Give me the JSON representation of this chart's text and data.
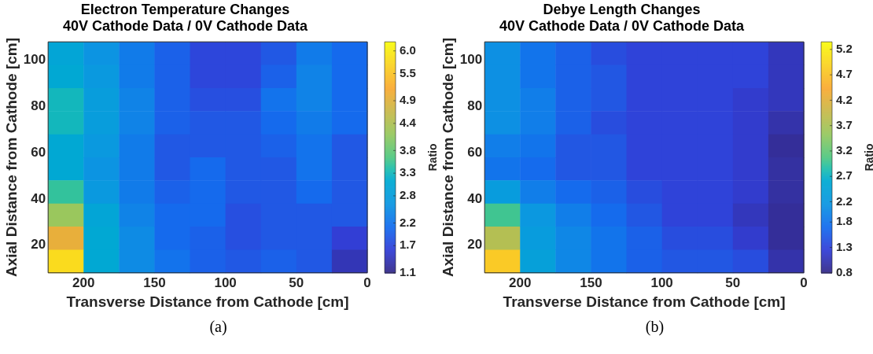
{
  "chart_data": [
    {
      "type": "heatmap",
      "title": "Electron Temperature Changes",
      "subtitle": "40V Cathode Data / 0V Cathode Data",
      "xlabel": "Transverse Distance from Cathode [cm]",
      "ylabel": "Axial Distance from Cathode [cm]",
      "clabel": "Ratio",
      "xlim": [
        225,
        0
      ],
      "xticks": [
        200,
        150,
        100,
        50,
        0
      ],
      "ylim": [
        8,
        108
      ],
      "yticks": [
        20,
        40,
        60,
        80,
        100
      ],
      "clim": [
        1.1,
        6.2
      ],
      "cticks": [
        1.1,
        1.7,
        2.2,
        2.8,
        3.3,
        3.8,
        4.4,
        4.9,
        5.5,
        {
          "value": 6.0,
          "label": "6.0"
        }
      ],
      "cells": [
        [
          3.0,
          2.6,
          2.3,
          2.0,
          1.7,
          1.7,
          1.9,
          2.3,
          2.1
        ],
        [
          3.1,
          2.7,
          2.3,
          2.0,
          1.7,
          1.7,
          2.0,
          2.4,
          2.1
        ],
        [
          3.3,
          2.8,
          2.4,
          2.0,
          1.8,
          1.8,
          2.2,
          2.4,
          2.1
        ],
        [
          3.3,
          2.8,
          2.4,
          2.0,
          1.9,
          1.9,
          2.1,
          2.3,
          2.1
        ],
        [
          3.1,
          2.7,
          2.3,
          1.9,
          1.9,
          1.9,
          2.0,
          2.2,
          1.9
        ],
        [
          3.1,
          2.6,
          2.3,
          1.9,
          2.1,
          1.9,
          1.9,
          2.2,
          1.9
        ],
        [
          3.5,
          2.7,
          2.3,
          2.0,
          2.1,
          1.9,
          1.9,
          2.1,
          1.9
        ],
        [
          4.2,
          3.0,
          2.4,
          2.1,
          2.1,
          1.8,
          1.9,
          1.9,
          1.9
        ],
        [
          5.0,
          3.1,
          2.5,
          2.1,
          2.0,
          1.8,
          1.9,
          1.9,
          1.6
        ],
        [
          5.8,
          3.1,
          2.5,
          2.2,
          2.0,
          1.9,
          2.0,
          1.9,
          1.4
        ]
      ],
      "annotations": [
        "(a)"
      ]
    },
    {
      "type": "heatmap",
      "title": "Debye Length Changes",
      "subtitle": "40V Cathode Data / 0V Cathode Data",
      "xlabel": "Transverse Distance from Cathode [cm]",
      "ylabel": "Axial Distance from Cathode [cm]",
      "clabel": "Ratio",
      "xlim": [
        225,
        0
      ],
      "xticks": [
        200,
        150,
        100,
        50,
        0
      ],
      "ylim": [
        8,
        108
      ],
      "yticks": [
        20,
        40,
        60,
        80,
        100
      ],
      "clim": [
        0.8,
        5.35
      ],
      "cticks": [
        0.8,
        1.3,
        1.8,
        2.2,
        2.7,
        3.2,
        3.7,
        4.2,
        4.7,
        5.2
      ],
      "cells": [
        [
          2.1,
          1.8,
          1.6,
          1.4,
          1.3,
          1.3,
          1.3,
          1.3,
          1.1
        ],
        [
          2.1,
          1.8,
          1.6,
          1.5,
          1.3,
          1.3,
          1.3,
          1.3,
          1.1
        ],
        [
          2.1,
          1.9,
          1.6,
          1.5,
          1.3,
          1.3,
          1.3,
          1.2,
          1.1
        ],
        [
          2.1,
          1.9,
          1.6,
          1.4,
          1.3,
          1.3,
          1.3,
          1.2,
          1.0
        ],
        [
          1.9,
          1.8,
          1.5,
          1.5,
          1.3,
          1.3,
          1.3,
          1.2,
          0.9
        ],
        [
          1.8,
          1.7,
          1.5,
          1.5,
          1.3,
          1.3,
          1.3,
          1.2,
          0.95
        ],
        [
          2.3,
          1.9,
          1.7,
          1.6,
          1.4,
          1.3,
          1.3,
          1.2,
          0.95
        ],
        [
          3.0,
          2.2,
          1.9,
          1.7,
          1.5,
          1.3,
          1.3,
          1.1,
          0.9
        ],
        [
          3.8,
          2.3,
          2.0,
          1.8,
          1.6,
          1.4,
          1.4,
          1.2,
          0.9
        ],
        [
          4.8,
          2.4,
          2.0,
          1.8,
          1.6,
          1.5,
          1.5,
          1.4,
          1.0
        ]
      ],
      "annotations": [
        "(b)"
      ]
    }
  ]
}
